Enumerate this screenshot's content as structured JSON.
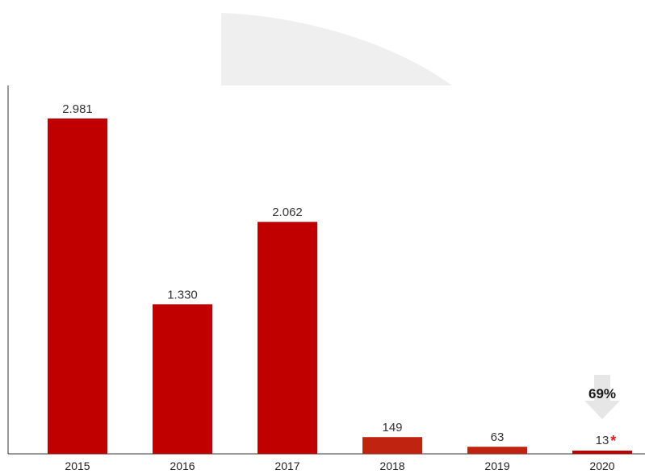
{
  "chart_data": {
    "type": "bar",
    "title": "",
    "xlabel": "",
    "ylabel": "",
    "categories": [
      "2015",
      "2016",
      "2017",
      "2018",
      "2019",
      "2020"
    ],
    "values": [
      2981,
      1330,
      2062,
      149,
      63,
      13
    ],
    "data_labels": [
      "2.981",
      "1.330",
      "2.062",
      "149",
      "63",
      "13"
    ],
    "ylim": [
      0,
      3100
    ],
    "grid": false,
    "legend": "none",
    "bar_colors": [
      "#c00000",
      "#c00000",
      "#c00000",
      "#c0230f",
      "#c0230f",
      "#c00000"
    ],
    "annotations": [
      {
        "category": "2020",
        "text": "69%",
        "marker": "down-arrow",
        "color": "#e6e6e6"
      },
      {
        "category": "2020",
        "text": "*",
        "color": "#e01c24"
      }
    ]
  }
}
